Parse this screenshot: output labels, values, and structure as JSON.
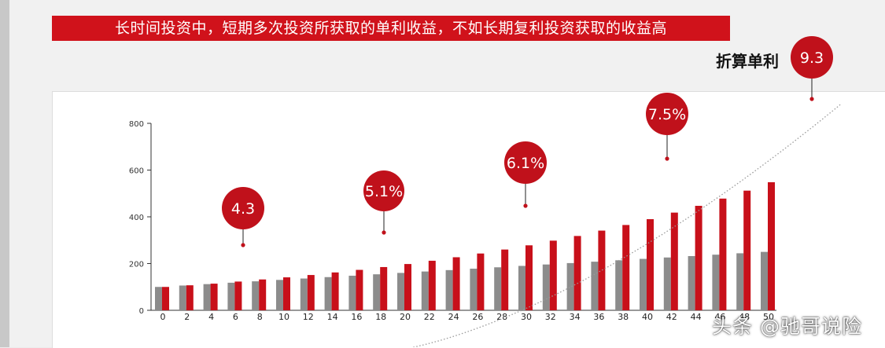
{
  "headline": "长时间投资中，短期多次投资所获取的单利收益，不如长期复利投资获取的收益高",
  "side_label": "折算单利",
  "watermark": "头条 @驰哥说险",
  "colors": {
    "headline_bg": "#d0121b",
    "gray_bar": "#8c8c8c",
    "red_bar": "#c8101a",
    "callout": "#c0111b",
    "curve": "#9a9a9a"
  },
  "chart_data": {
    "type": "bar",
    "categories": [
      "0",
      "2",
      "4",
      "6",
      "8",
      "10",
      "12",
      "14",
      "16",
      "18",
      "20",
      "22",
      "24",
      "26",
      "28",
      "30",
      "32",
      "34",
      "36",
      "38",
      "40",
      "42",
      "44",
      "46",
      "48",
      "50"
    ],
    "series": [
      {
        "values": [
          100,
          106,
          112,
          118,
          124,
          130,
          136,
          142,
          148,
          154,
          160,
          166,
          172,
          178,
          184,
          190,
          196,
          202,
          208,
          214,
          220,
          226,
          232,
          238,
          244,
          250
        ]
      },
      {
        "values": [
          100,
          107,
          114,
          123,
          132,
          141,
          151,
          162,
          173,
          185,
          198,
          212,
          227,
          243,
          260,
          278,
          298,
          318,
          341,
          365,
          390,
          418,
          447,
          478,
          512,
          548
        ]
      }
    ],
    "ylim": [
      0,
      800
    ],
    "yticks": [
      0,
      200,
      400,
      600,
      800
    ],
    "callouts": [
      {
        "text": "4.3",
        "x": 6
      },
      {
        "text": "5.1%",
        "x": 18
      },
      {
        "text": "6.1%",
        "x": 30
      },
      {
        "text": "7.5%",
        "x": 42
      },
      {
        "text": "9.3",
        "x": 50
      }
    ]
  }
}
